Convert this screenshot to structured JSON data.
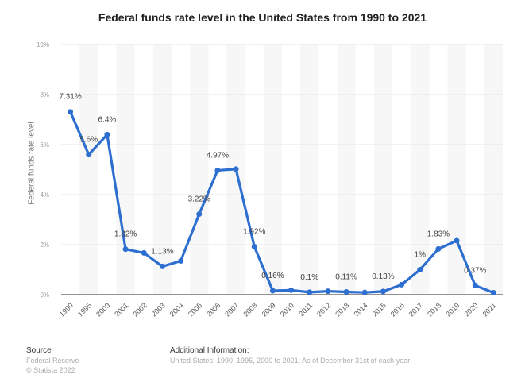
{
  "chart_data": {
    "type": "line",
    "title": "Federal funds rate level in the United States from 1990 to 2021",
    "ylabel": "Federal funds rate level",
    "xlabel": "",
    "ylim": [
      0,
      10
    ],
    "yticks": [
      "0%",
      "2%",
      "4%",
      "6%",
      "8%",
      "10%"
    ],
    "grid": true,
    "color": "#2d6fd0",
    "categories": [
      "1990",
      "1995",
      "2000",
      "2001",
      "2002",
      "2003",
      "2004",
      "2005",
      "2006",
      "2007",
      "2008",
      "2009",
      "2010",
      "2011",
      "2012",
      "2013",
      "2014",
      "2015",
      "2016",
      "2017",
      "2018",
      "2019",
      "2020",
      "2021"
    ],
    "values": [
      7.31,
      5.6,
      6.4,
      1.82,
      1.67,
      1.13,
      1.35,
      3.22,
      4.97,
      5.02,
      1.92,
      0.16,
      0.18,
      0.1,
      0.14,
      0.11,
      0.09,
      0.13,
      0.4,
      1.0,
      1.83,
      2.16,
      0.37,
      0.08
    ],
    "data_labels": {
      "1990": "7.31%",
      "1995": "5.6%",
      "2000": "6.4%",
      "2001": "1.82%",
      "2003": "1.13%",
      "2005": "3.22%",
      "2006": "4.97%",
      "2008": "1.92%",
      "2009": "0.16%",
      "2011": "0.1%",
      "2013": "0.11%",
      "2015": "0.13%",
      "2017": "1%",
      "2018": "1.83%",
      "2020": "0.37%"
    }
  },
  "footer": {
    "source_heading": "Source",
    "source_lines": [
      "Federal Reserve",
      "© Statista 2022"
    ],
    "info_heading": "Additional Information:",
    "info_text": "United States; 1990, 1995, 2000 to 2021; As of December 31st of each year"
  }
}
